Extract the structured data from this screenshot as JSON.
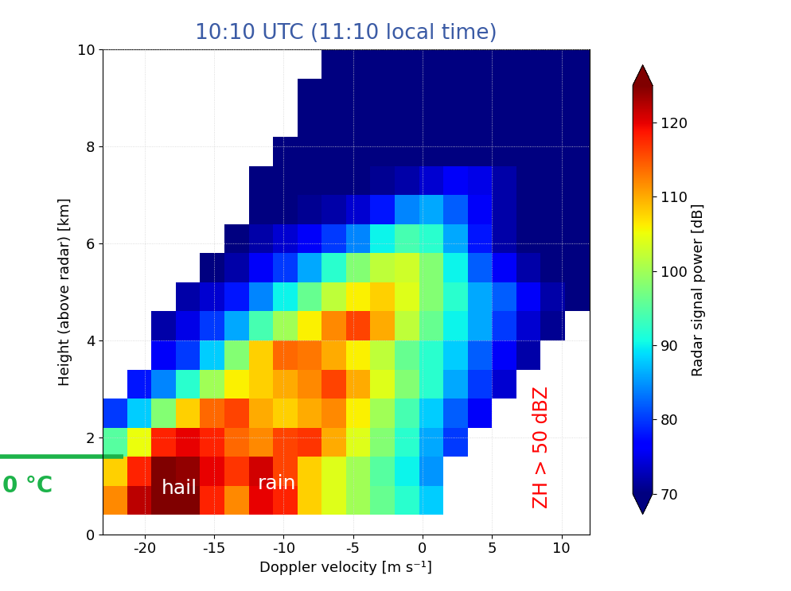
{
  "chart_data": {
    "type": "heatmap",
    "title": "10:10 UTC (11:10 local time)",
    "x_label": "Doppler velocity [m s⁻¹]",
    "y_label": "Height (above radar) [km]",
    "xlim": [
      -23,
      12
    ],
    "ylim": [
      0,
      10
    ],
    "xticks": [
      -20,
      -15,
      -10,
      -5,
      0,
      5,
      10
    ],
    "yticks": [
      0,
      2,
      4,
      6,
      8,
      10
    ],
    "grid": true,
    "x_edges": [
      -23,
      -21.25,
      -19.5,
      -17.75,
      -16,
      -14.25,
      -12.5,
      -10.75,
      -9,
      -7.25,
      -5.5,
      -3.75,
      -2,
      -0.25,
      1.5,
      3.25,
      5,
      6.75,
      8.5,
      10.25,
      12
    ],
    "y_edges": [
      0.4,
      1.0,
      1.6,
      2.2,
      2.8,
      3.4,
      4.0,
      4.6,
      5.2,
      5.8,
      6.4,
      7.0,
      7.6,
      8.2,
      8.8,
      9.4,
      10.0
    ],
    "cells": [
      [
        112,
        122,
        126,
        125,
        118,
        112,
        120,
        118,
        108,
        104,
        100,
        96,
        92,
        88,
        null,
        null,
        null,
        null,
        null,
        null
      ],
      [
        108,
        118,
        125,
        124,
        120,
        117,
        121,
        116,
        108,
        104,
        100,
        95,
        90,
        85,
        null,
        null,
        null,
        null,
        null,
        null
      ],
      [
        95,
        105,
        118,
        120,
        118,
        114,
        112,
        116,
        117,
        110,
        104,
        98,
        92,
        86,
        80,
        null,
        null,
        null,
        null,
        null
      ],
      [
        80,
        88,
        98,
        108,
        114,
        116,
        110,
        108,
        110,
        112,
        106,
        100,
        94,
        88,
        82,
        76,
        null,
        null,
        null,
        null
      ],
      [
        null,
        78,
        84,
        92,
        100,
        106,
        108,
        110,
        112,
        116,
        110,
        104,
        98,
        92,
        86,
        80,
        74,
        null,
        null,
        null
      ],
      [
        null,
        null,
        76,
        80,
        88,
        98,
        108,
        114,
        113,
        110,
        106,
        102,
        96,
        92,
        88,
        82,
        76,
        72,
        null,
        null
      ],
      [
        null,
        null,
        72,
        75,
        80,
        86,
        94,
        100,
        106,
        112,
        116,
        110,
        102,
        96,
        90,
        86,
        80,
        74,
        71,
        null
      ],
      [
        null,
        null,
        null,
        72,
        74,
        78,
        84,
        90,
        96,
        102,
        106,
        108,
        104,
        98,
        92,
        86,
        82,
        76,
        72,
        70
      ],
      [
        null,
        null,
        null,
        null,
        70,
        72,
        76,
        80,
        86,
        92,
        98,
        102,
        103,
        98,
        90,
        82,
        76,
        72,
        70,
        70
      ],
      [
        null,
        null,
        null,
        null,
        null,
        70,
        72,
        74,
        76,
        80,
        84,
        90,
        94,
        92,
        86,
        78,
        72,
        70,
        70,
        70
      ],
      [
        null,
        null,
        null,
        null,
        null,
        null,
        70,
        70,
        71,
        72,
        74,
        78,
        84,
        86,
        82,
        76,
        72,
        70,
        70,
        70
      ],
      [
        null,
        null,
        null,
        null,
        null,
        null,
        70,
        70,
        70,
        70,
        70,
        71,
        72,
        74,
        76,
        75,
        72,
        70,
        70,
        70
      ],
      [
        null,
        null,
        null,
        null,
        null,
        null,
        null,
        70,
        70,
        70,
        70,
        70,
        70,
        70,
        70,
        70,
        70,
        70,
        70,
        70
      ],
      [
        null,
        null,
        null,
        null,
        null,
        null,
        null,
        null,
        70,
        70,
        70,
        70,
        70,
        70,
        70,
        70,
        70,
        70,
        70,
        70
      ],
      [
        null,
        null,
        null,
        null,
        null,
        null,
        null,
        null,
        70,
        70,
        70,
        70,
        70,
        70,
        70,
        70,
        70,
        70,
        70,
        70
      ],
      [
        null,
        null,
        null,
        null,
        null,
        null,
        null,
        null,
        null,
        70,
        70,
        70,
        70,
        70,
        70,
        70,
        70,
        70,
        70,
        70
      ]
    ],
    "colorbar": {
      "label": "Radar signal power [dB]",
      "range": [
        70,
        125
      ],
      "ticks": [
        70,
        80,
        90,
        100,
        110,
        120
      ]
    },
    "annotations": [
      "hail",
      "rain",
      "ZH > 50 dBZ"
    ],
    "freezing_level": {
      "label": "0 °C",
      "height": 1.6
    }
  }
}
